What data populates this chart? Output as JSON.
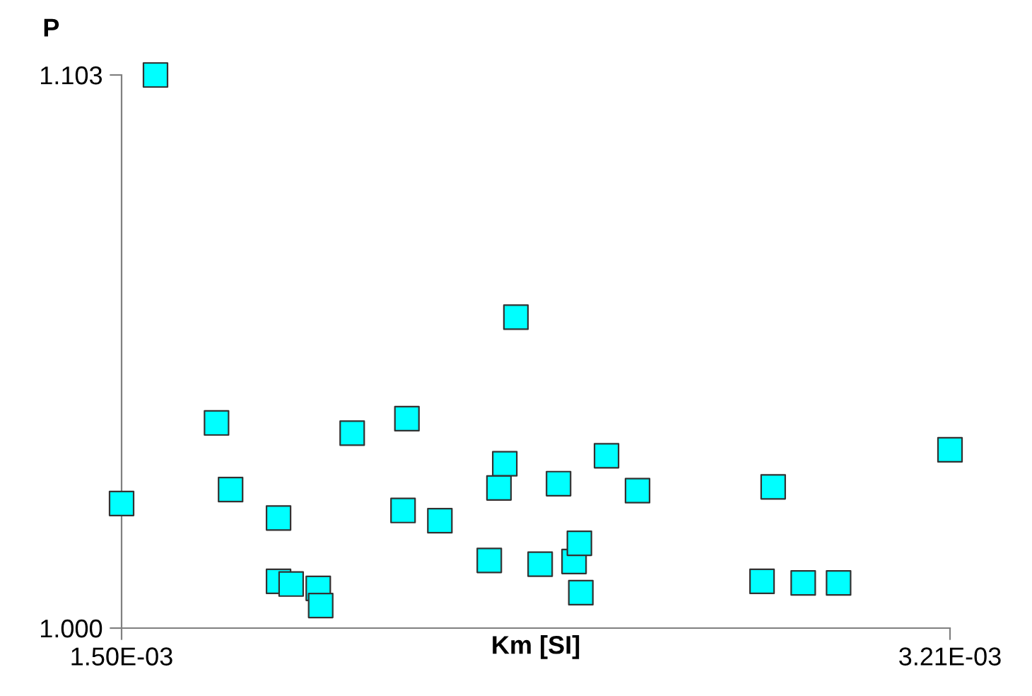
{
  "chart_data": {
    "type": "scatter",
    "xlabel": "Km [SI]",
    "ylabel": "P",
    "marker": "square",
    "grid": false,
    "legend": false,
    "xlim": [
      0.0015,
      0.00321
    ],
    "xticks": [
      {
        "value": 0.0015,
        "label": "1.50E-03"
      },
      {
        "value": 0.00321,
        "label": "3.21E-03"
      }
    ],
    "ylim": [
      1.0,
      1.103
    ],
    "yticks": [
      {
        "value": 1.0,
        "label": "1.000"
      },
      {
        "value": 1.103,
        "label": "1.103"
      }
    ],
    "series": [
      {
        "color": "#00ffff",
        "x": [
          0.0015,
          0.00157,
          0.001696,
          0.001725,
          0.001824,
          0.001824,
          0.00185,
          0.001906,
          0.001911,
          0.001976,
          0.002081,
          0.002089,
          0.002157,
          0.002259,
          0.002279,
          0.002291,
          0.002314,
          0.002364,
          0.002402,
          0.002434,
          0.002445,
          0.002448,
          0.002501,
          0.002565,
          0.002822,
          0.002845,
          0.002907,
          0.00298,
          0.00321
        ],
        "values": [
          1.0232,
          1.103,
          1.0382,
          1.0258,
          1.0205,
          1.0087,
          1.0082,
          1.0074,
          1.0042,
          1.0363,
          1.0219,
          1.039,
          1.02,
          1.0126,
          1.0261,
          1.0306,
          1.0579,
          1.0119,
          1.0269,
          1.0124,
          1.0158,
          1.0066,
          1.0321,
          1.0256,
          1.0087,
          1.0263,
          1.0084,
          1.0084,
          1.0332
        ]
      }
    ]
  }
}
